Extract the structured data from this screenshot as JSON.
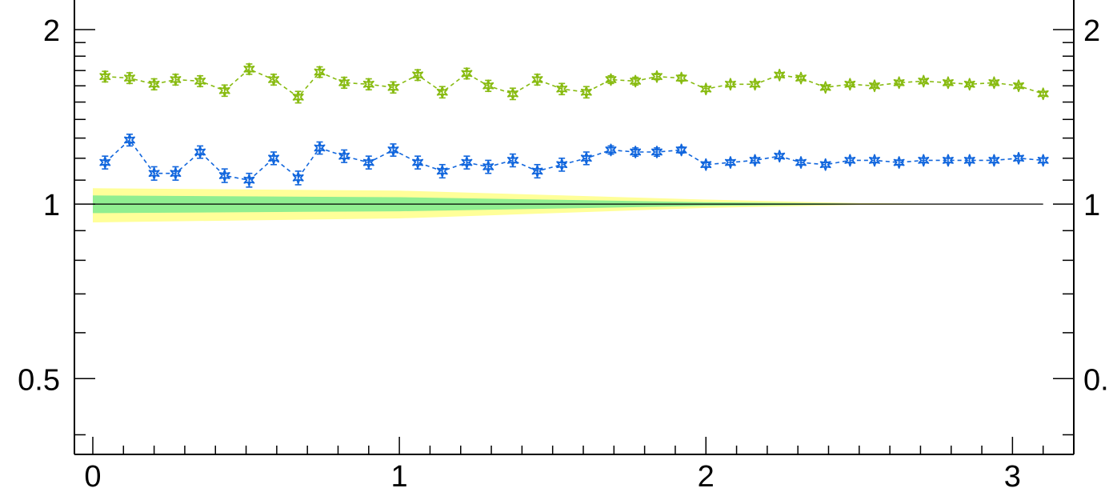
{
  "chart_data": {
    "type": "line",
    "title": "",
    "xlabel": "",
    "ylabel": "",
    "y_scale": "log",
    "xlim": [
      -0.06,
      3.2
    ],
    "ylim": [
      0.37,
      2.25
    ],
    "x_ticks": [
      {
        "value": 0,
        "label": "0"
      },
      {
        "value": 1,
        "label": "1"
      },
      {
        "value": 2,
        "label": "2"
      },
      {
        "value": 3,
        "label": "3"
      }
    ],
    "y_ticks": [
      {
        "value": 0.5,
        "label": "0.5",
        "right_label": "0."
      },
      {
        "value": 1,
        "label": "1",
        "right_label": "1"
      },
      {
        "value": 2,
        "label": "2",
        "right_label": "2"
      }
    ],
    "y_minor_ticks": [
      0.4,
      0.6,
      0.7,
      0.8,
      0.9,
      1.1,
      1.2,
      1.3,
      1.4,
      1.5,
      1.6,
      1.7,
      1.8,
      1.9
    ],
    "reference_line": 1,
    "bands": [
      {
        "name": "",
        "color": "#ffff99",
        "x": [
          0,
          1,
          2,
          2.5,
          3,
          3.1
        ],
        "lower": [
          0.93,
          0.945,
          0.985,
          0.997,
          1.0,
          1.0
        ],
        "upper": [
          1.065,
          1.055,
          1.018,
          1.004,
          1.0,
          1.0
        ]
      },
      {
        "name": "",
        "color": "#90ee90",
        "x": [
          0,
          1,
          2,
          2.5,
          3,
          3.1
        ],
        "lower": [
          0.965,
          0.972,
          0.993,
          0.999,
          1.0,
          1.0
        ],
        "upper": [
          1.035,
          1.028,
          1.008,
          1.002,
          1.0,
          1.0
        ]
      }
    ],
    "series": [
      {
        "name": "",
        "color": "#88bb11",
        "marker": "star",
        "line_style": "dashed",
        "x": [
          0.04,
          0.12,
          0.2,
          0.27,
          0.35,
          0.43,
          0.51,
          0.59,
          0.67,
          0.74,
          0.82,
          0.9,
          0.98,
          1.06,
          1.14,
          1.22,
          1.29,
          1.37,
          1.45,
          1.53,
          1.61,
          1.69,
          1.77,
          1.84,
          1.92,
          2.0,
          2.08,
          2.16,
          2.24,
          2.31,
          2.39,
          2.47,
          2.55,
          2.63,
          2.71,
          2.79,
          2.86,
          2.94,
          3.02,
          3.1
        ],
        "y": [
          1.66,
          1.65,
          1.61,
          1.64,
          1.63,
          1.57,
          1.71,
          1.64,
          1.53,
          1.69,
          1.62,
          1.61,
          1.59,
          1.67,
          1.56,
          1.68,
          1.6,
          1.55,
          1.64,
          1.58,
          1.56,
          1.64,
          1.63,
          1.66,
          1.65,
          1.58,
          1.61,
          1.61,
          1.67,
          1.65,
          1.59,
          1.61,
          1.6,
          1.62,
          1.63,
          1.62,
          1.61,
          1.62,
          1.6,
          1.55
        ],
        "err": [
          0.035,
          0.035,
          0.035,
          0.035,
          0.035,
          0.035,
          0.035,
          0.035,
          0.035,
          0.035,
          0.035,
          0.035,
          0.035,
          0.035,
          0.035,
          0.035,
          0.035,
          0.035,
          0.035,
          0.035,
          0.035,
          0.025,
          0.025,
          0.02,
          0.02,
          0.015,
          0.015,
          0.015,
          0.012,
          0.01,
          0.01,
          0.01,
          0.01,
          0.01,
          0.01,
          0.01,
          0.01,
          0.01,
          0.01,
          0.01
        ]
      },
      {
        "name": "",
        "color": "#1166dd",
        "marker": "star",
        "line_style": "dashed",
        "x": [
          0.04,
          0.12,
          0.2,
          0.27,
          0.35,
          0.43,
          0.51,
          0.59,
          0.67,
          0.74,
          0.82,
          0.9,
          0.98,
          1.06,
          1.14,
          1.22,
          1.29,
          1.37,
          1.45,
          1.53,
          1.61,
          1.69,
          1.77,
          1.84,
          1.92,
          2.0,
          2.08,
          2.16,
          2.24,
          2.31,
          2.39,
          2.47,
          2.55,
          2.63,
          2.71,
          2.79,
          2.86,
          2.94,
          3.02,
          3.1
        ],
        "y": [
          1.18,
          1.29,
          1.13,
          1.13,
          1.23,
          1.12,
          1.1,
          1.2,
          1.11,
          1.25,
          1.21,
          1.18,
          1.24,
          1.18,
          1.14,
          1.18,
          1.16,
          1.19,
          1.14,
          1.17,
          1.2,
          1.24,
          1.23,
          1.23,
          1.24,
          1.17,
          1.18,
          1.19,
          1.21,
          1.18,
          1.17,
          1.19,
          1.19,
          1.18,
          1.19,
          1.19,
          1.19,
          1.19,
          1.2,
          1.19
        ],
        "err": [
          0.03,
          0.03,
          0.03,
          0.03,
          0.03,
          0.03,
          0.03,
          0.03,
          0.03,
          0.03,
          0.03,
          0.03,
          0.03,
          0.03,
          0.03,
          0.03,
          0.03,
          0.03,
          0.03,
          0.03,
          0.03,
          0.02,
          0.02,
          0.02,
          0.015,
          0.012,
          0.012,
          0.012,
          0.01,
          0.01,
          0.01,
          0.01,
          0.01,
          0.01,
          0.01,
          0.01,
          0.01,
          0.01,
          0.01,
          0.01
        ]
      }
    ]
  }
}
